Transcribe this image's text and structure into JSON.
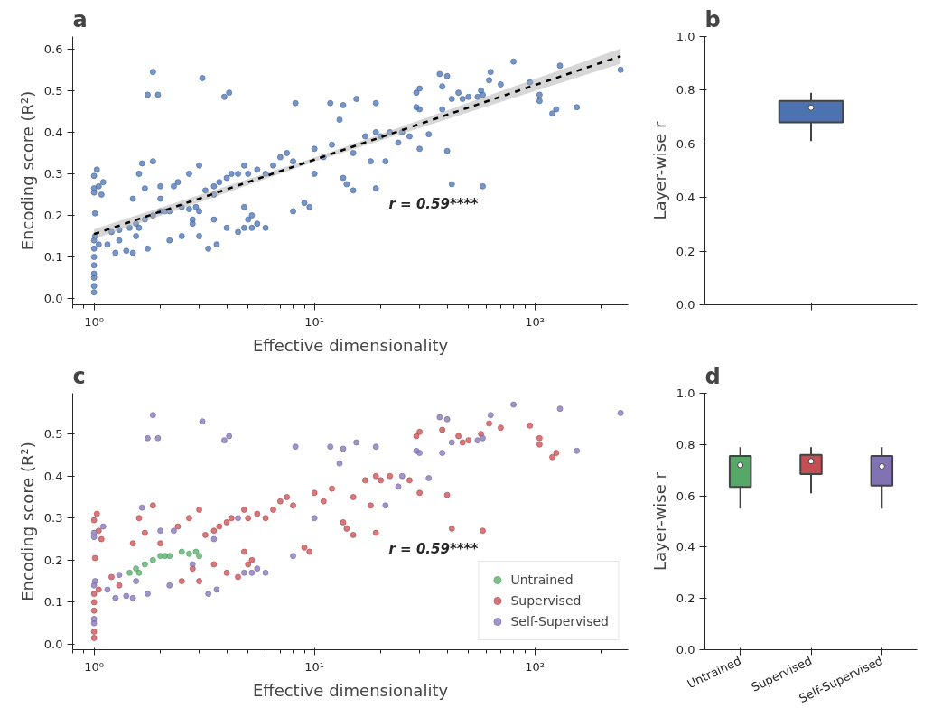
{
  "chart_data": [
    {
      "type": "scatter",
      "title": "a",
      "xlabel": "Effective dimensionality",
      "ylabel": "Encoding score (R²)",
      "log": "x",
      "grid": false,
      "legend": false,
      "marker": "circle",
      "xlim": [
        0.8,
        265
      ],
      "ylim": [
        -0.015,
        0.63
      ],
      "xticks": [
        {
          "value": 1,
          "label": "10⁰"
        },
        {
          "value": 10,
          "label": "10¹"
        },
        {
          "value": 100,
          "label": "10²"
        }
      ],
      "yticks": [
        {
          "value": 0,
          "label": "0.0"
        },
        {
          "value": 0.1,
          "label": "0.1"
        },
        {
          "value": 0.2,
          "label": "0.2"
        },
        {
          "value": 0.3,
          "label": "0.3"
        },
        {
          "value": 0.4,
          "label": "0.4"
        },
        {
          "value": 0.5,
          "label": "0.5"
        },
        {
          "value": 0.6,
          "label": "0.6"
        }
      ],
      "annotations": [
        "r = 0.59****"
      ],
      "series": [
        {
          "type": "scatter",
          "color": "#4c72b0",
          "x": [
            1.45,
            1.55,
            1.6,
            1.7,
            1.85,
            2,
            2.1,
            2.2,
            2.5,
            2.7,
            2.9,
            3,
            1.0,
            1.0,
            1.0,
            1.01,
            1.0,
            1.0,
            1.1,
            1.15,
            1.25,
            1.3,
            1.4,
            1.5,
            1.55,
            1.75,
            1.65,
            1.75,
            1.85,
            1.95,
            2,
            2.2,
            2.3,
            2.8,
            3.1,
            3.3,
            3.5,
            3.6,
            3.9,
            4.1,
            4.5,
            4.8,
            5.2,
            5.5,
            6,
            8.2,
            8,
            10,
            11.8,
            13,
            13.5,
            15.5,
            19,
            21,
            24,
            25,
            29,
            30,
            33,
            37,
            38,
            40,
            42,
            55,
            58,
            63,
            80,
            130,
            155,
            245,
            1.0,
            1.0,
            1.0,
            1.0,
            1.0,
            1.01,
            1.0,
            1.03,
            1.05,
            1.05,
            1.08,
            1.2,
            1.3,
            1.5,
            1.6,
            1.7,
            1.85,
            2,
            2.4,
            2.5,
            2.7,
            2.8,
            3,
            3,
            3.2,
            3.5,
            3.5,
            3.7,
            4,
            4,
            4.2,
            4.5,
            4.8,
            4.8,
            5,
            5,
            5.2,
            5.5,
            6,
            6.5,
            7,
            7.5,
            8,
            9,
            9.5,
            10,
            11,
            12,
            13.5,
            14,
            15,
            15,
            17,
            18,
            19,
            19,
            20,
            22,
            27,
            30,
            29,
            30,
            38,
            40,
            42,
            45,
            47,
            50,
            57,
            58,
            62,
            70,
            95,
            105,
            105,
            120,
            125
          ],
          "values": [
            0.17,
            0.18,
            0.17,
            0.19,
            0.2,
            0.21,
            0.21,
            0.21,
            0.22,
            0.215,
            0.22,
            0.21,
            0.05,
            0.06,
            0.14,
            0.15,
            0.255,
            0.265,
            0.28,
            0.13,
            0.11,
            0.165,
            0.115,
            0.11,
            0.15,
            0.12,
            0.325,
            0.49,
            0.545,
            0.49,
            0.27,
            0.14,
            0.27,
            0.19,
            0.53,
            0.12,
            0.25,
            0.13,
            0.485,
            0.495,
            0.3,
            0.17,
            0.17,
            0.18,
            0.17,
            0.47,
            0.21,
            0.3,
            0.47,
            0.43,
            0.465,
            0.48,
            0.47,
            0.33,
            0.375,
            0.4,
            0.46,
            0.455,
            0.395,
            0.54,
            0.455,
            0.535,
            0.48,
            0.485,
            0.49,
            0.545,
            0.57,
            0.56,
            0.46,
            0.55,
            0.015,
            0.03,
            0.08,
            0.1,
            0.12,
            0.205,
            0.295,
            0.31,
            0.13,
            0.27,
            0.25,
            0.16,
            0.14,
            0.24,
            0.3,
            0.265,
            0.33,
            0.24,
            0.28,
            0.15,
            0.3,
            0.18,
            0.32,
            0.15,
            0.26,
            0.27,
            0.19,
            0.28,
            0.29,
            0.17,
            0.3,
            0.16,
            0.32,
            0.22,
            0.3,
            0.19,
            0.2,
            0.31,
            0.3,
            0.32,
            0.34,
            0.35,
            0.33,
            0.23,
            0.22,
            0.36,
            0.34,
            0.37,
            0.29,
            0.275,
            0.26,
            0.35,
            0.39,
            0.33,
            0.265,
            0.4,
            0.39,
            0.4,
            0.39,
            0.36,
            0.495,
            0.505,
            0.51,
            0.355,
            0.275,
            0.495,
            0.48,
            0.485,
            0.5,
            0.27,
            0.525,
            0.515,
            0.52,
            0.49,
            0.475,
            0.445,
            0.455
          ]
        },
        {
          "type": "line",
          "color": "#000000",
          "line_style": "dashed",
          "marker": "none",
          "x": [
            1,
            10,
            245
          ],
          "values": [
            0.155,
            0.334,
            0.583
          ],
          "lower": [
            0.143,
            0.329,
            0.565
          ],
          "upper": [
            0.167,
            0.339,
            0.601
          ]
        }
      ]
    },
    {
      "type": "box",
      "title": "b",
      "ylabel": "Layer-wise r",
      "grid": false,
      "categories": [
        null
      ],
      "colors": [
        "#4c72b0"
      ],
      "ylim": [
        0,
        1
      ],
      "yticks": [
        {
          "value": 0,
          "label": "0.0"
        },
        {
          "value": 0.2,
          "label": "0.2"
        },
        {
          "value": 0.4,
          "label": "0.4"
        },
        {
          "value": 0.6,
          "label": "0.6"
        },
        {
          "value": 0.8,
          "label": "0.8"
        },
        {
          "value": 1,
          "label": "1.0"
        }
      ],
      "boxes": [
        {
          "low": 0.61,
          "q1": 0.68,
          "median": 0.735,
          "q3": 0.76,
          "high": 0.79
        }
      ]
    },
    {
      "type": "scatter",
      "title": "c",
      "xlabel": "Effective dimensionality",
      "ylabel": "Encoding score (R²)",
      "log": "x",
      "grid": false,
      "legend": "bottom right",
      "marker": "circle",
      "xlim": [
        0.8,
        265
      ],
      "ylim": [
        -0.013,
        0.597
      ],
      "xticks": [
        {
          "value": 1,
          "label": "10⁰"
        },
        {
          "value": 10,
          "label": "10¹"
        },
        {
          "value": 100,
          "label": "10²"
        }
      ],
      "yticks": [
        {
          "value": 0,
          "label": "0.0"
        },
        {
          "value": 0.1,
          "label": "0.1"
        },
        {
          "value": 0.2,
          "label": "0.2"
        },
        {
          "value": 0.3,
          "label": "0.3"
        },
        {
          "value": 0.4,
          "label": "0.4"
        },
        {
          "value": 0.5,
          "label": "0.5"
        }
      ],
      "annotations": [
        "r = 0.59****"
      ],
      "series": [
        {
          "name": "Untrained",
          "color": "#55a868",
          "x": [
            1.45,
            1.55,
            1.6,
            1.7,
            1.85,
            2,
            2.1,
            2.2,
            2.5,
            2.7,
            2.9,
            3
          ],
          "values": [
            0.17,
            0.18,
            0.17,
            0.19,
            0.2,
            0.21,
            0.21,
            0.21,
            0.22,
            0.215,
            0.22,
            0.21
          ]
        },
        {
          "name": "Supervised",
          "color": "#c44e52",
          "x": [
            1.0,
            1.0,
            1.0,
            1.0,
            1.0,
            1.01,
            1.0,
            1.03,
            1.05,
            1.05,
            1.08,
            1.2,
            1.3,
            1.5,
            1.6,
            1.7,
            1.85,
            2,
            2.4,
            2.5,
            2.7,
            2.8,
            3,
            3,
            3.2,
            3.5,
            3.5,
            3.7,
            4,
            4,
            4.2,
            4.5,
            4.8,
            4.8,
            5,
            5,
            5.2,
            5.5,
            6,
            6.5,
            7,
            7.5,
            8,
            9,
            9.5,
            10,
            11,
            12,
            13.5,
            14,
            15,
            15,
            17,
            18,
            19,
            19,
            20,
            22,
            27,
            30,
            29,
            30,
            38,
            40,
            42,
            45,
            47,
            50,
            57,
            58,
            62,
            70,
            95,
            105,
            105,
            120,
            125
          ],
          "values": [
            0.015,
            0.03,
            0.08,
            0.1,
            0.12,
            0.205,
            0.295,
            0.31,
            0.13,
            0.27,
            0.25,
            0.16,
            0.14,
            0.24,
            0.3,
            0.265,
            0.33,
            0.24,
            0.28,
            0.15,
            0.3,
            0.18,
            0.32,
            0.15,
            0.26,
            0.27,
            0.19,
            0.28,
            0.29,
            0.17,
            0.3,
            0.16,
            0.32,
            0.22,
            0.3,
            0.19,
            0.2,
            0.31,
            0.3,
            0.32,
            0.34,
            0.35,
            0.33,
            0.23,
            0.22,
            0.36,
            0.34,
            0.37,
            0.29,
            0.275,
            0.26,
            0.35,
            0.39,
            0.33,
            0.265,
            0.4,
            0.39,
            0.4,
            0.39,
            0.36,
            0.495,
            0.505,
            0.51,
            0.355,
            0.275,
            0.495,
            0.48,
            0.485,
            0.5,
            0.27,
            0.525,
            0.515,
            0.52,
            0.49,
            0.475,
            0.445,
            0.455
          ]
        },
        {
          "name": "Self-Supervised",
          "color": "#8172b2",
          "x": [
            1.0,
            1.0,
            1.0,
            1.01,
            1.0,
            1.0,
            1.1,
            1.15,
            1.25,
            1.3,
            1.4,
            1.5,
            1.55,
            1.75,
            1.65,
            1.75,
            1.85,
            1.95,
            2,
            2.2,
            2.3,
            2.8,
            3.1,
            3.3,
            3.5,
            3.6,
            3.9,
            4.1,
            4.5,
            4.8,
            5.2,
            5.5,
            6,
            8.2,
            8,
            10,
            11.8,
            13,
            13.5,
            15.5,
            19,
            21,
            24,
            25,
            29,
            30,
            33,
            37,
            38,
            40,
            42,
            55,
            58,
            63,
            80,
            130,
            155,
            245
          ],
          "values": [
            0.05,
            0.06,
            0.14,
            0.15,
            0.255,
            0.265,
            0.28,
            0.13,
            0.11,
            0.165,
            0.115,
            0.11,
            0.15,
            0.12,
            0.325,
            0.49,
            0.545,
            0.49,
            0.27,
            0.14,
            0.27,
            0.19,
            0.53,
            0.12,
            0.25,
            0.13,
            0.485,
            0.495,
            0.3,
            0.17,
            0.17,
            0.18,
            0.17,
            0.47,
            0.21,
            0.3,
            0.47,
            0.43,
            0.465,
            0.48,
            0.47,
            0.33,
            0.375,
            0.4,
            0.46,
            0.455,
            0.395,
            0.54,
            0.455,
            0.535,
            0.48,
            0.485,
            0.49,
            0.545,
            0.57,
            0.56,
            0.46,
            0.55
          ]
        }
      ]
    },
    {
      "type": "box",
      "title": "d",
      "ylabel": "Layer-wise r",
      "grid": false,
      "categories": [
        "Untrained",
        "Supervised",
        "Self-Supervised"
      ],
      "colors": [
        "#55a868",
        "#c44e52",
        "#8172b2"
      ],
      "ylim": [
        0,
        1
      ],
      "yticks": [
        {
          "value": 0,
          "label": "0.0"
        },
        {
          "value": 0.2,
          "label": "0.2"
        },
        {
          "value": 0.4,
          "label": "0.4"
        },
        {
          "value": 0.6,
          "label": "0.6"
        },
        {
          "value": 0.8,
          "label": "0.8"
        },
        {
          "value": 1,
          "label": "1.0"
        }
      ],
      "boxes": [
        {
          "low": 0.55,
          "q1": 0.635,
          "median": 0.72,
          "q3": 0.755,
          "high": 0.79
        },
        {
          "low": 0.61,
          "q1": 0.685,
          "median": 0.735,
          "q3": 0.76,
          "high": 0.79
        },
        {
          "low": 0.55,
          "q1": 0.64,
          "median": 0.715,
          "q3": 0.755,
          "high": 0.79
        }
      ]
    }
  ]
}
